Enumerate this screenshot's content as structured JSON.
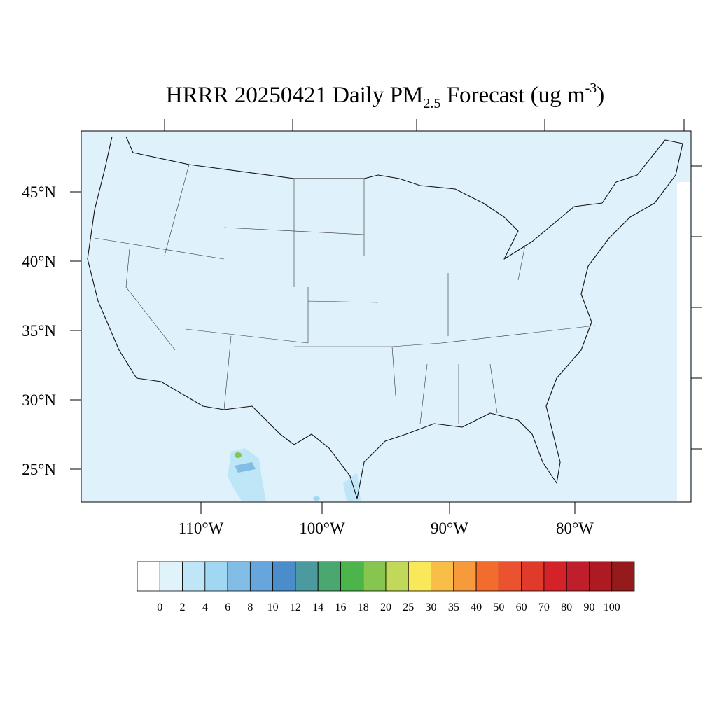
{
  "map": {
    "title": {
      "main": "HRRR 20250421 Daily PM",
      "subscript": "2.5",
      "middle": " Forecast (ug m",
      "superscript": "-3",
      "end": ")"
    },
    "lat_labels": [
      "25°N",
      "30°N",
      "35°N",
      "40°N",
      "45°N"
    ],
    "lon_labels": [
      "110°W",
      "100°W",
      "90°W",
      "80°W"
    ],
    "colorbar": {
      "levels": [
        0,
        2,
        4,
        6,
        8,
        10,
        12,
        14,
        16,
        18,
        20,
        25,
        30,
        35,
        40,
        50,
        60,
        70,
        80,
        90,
        100
      ],
      "colors": [
        "#ffffff",
        "#e0f3fb",
        "#bfe6f7",
        "#a0d8f4",
        "#82bde6",
        "#66a6dc",
        "#4b8dcb",
        "#4a9a9f",
        "#4aa76f",
        "#4bb44a",
        "#86c54e",
        "#c2d858",
        "#f8e85a",
        "#f8be48",
        "#f79a3b",
        "#f26c2d",
        "#ea5230",
        "#e03a2a",
        "#d52229",
        "#bf1e2b",
        "#ae1a21",
        "#951a1c"
      ]
    }
  }
}
